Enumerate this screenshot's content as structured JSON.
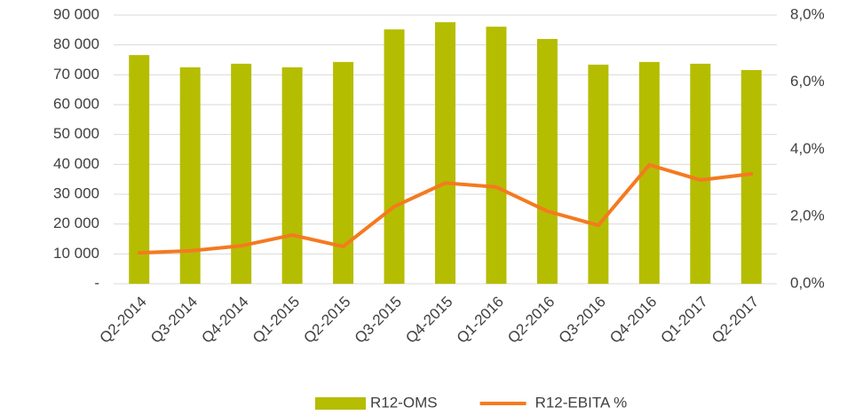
{
  "chart_data": {
    "type": "bar_line",
    "categories": [
      "Q2-2014",
      "Q3-2014",
      "Q4-2014",
      "Q1-2015",
      "Q2-2015",
      "Q3-2015",
      "Q4-2015",
      "Q1-2016",
      "Q2-2016",
      "Q3-2016",
      "Q4-2016",
      "Q1-2017",
      "Q2-2017"
    ],
    "series": [
      {
        "name": "R12-OMS",
        "type": "bar",
        "color": "#b5bd00",
        "values": [
          76600,
          72500,
          73700,
          72500,
          74300,
          85200,
          87600,
          86100,
          82000,
          73400,
          74300,
          73700,
          71600
        ]
      },
      {
        "name": "R12-EBITA %",
        "type": "line",
        "axis": "y2",
        "color": "#f47a20",
        "values": [
          0.92,
          0.98,
          1.13,
          1.45,
          1.11,
          2.3,
          3.0,
          2.88,
          2.16,
          1.74,
          3.54,
          3.09,
          3.27
        ]
      }
    ],
    "ylim": [
      0,
      90000
    ],
    "yticks": [
      {
        "value": 0,
        "label": "-"
      },
      {
        "value": 10000,
        "label": "10 000"
      },
      {
        "value": 20000,
        "label": "20 000"
      },
      {
        "value": 30000,
        "label": "30 000"
      },
      {
        "value": 40000,
        "label": "40 000"
      },
      {
        "value": 50000,
        "label": "50 000"
      },
      {
        "value": 60000,
        "label": "60 000"
      },
      {
        "value": 70000,
        "label": "70 000"
      },
      {
        "value": 80000,
        "label": "80 000"
      },
      {
        "value": 90000,
        "label": "90 000"
      }
    ],
    "y2lim": [
      0,
      8
    ],
    "y2ticks": [
      {
        "value": 0,
        "label": "0,0%"
      },
      {
        "value": 2,
        "label": "2,0%"
      },
      {
        "value": 4,
        "label": "4,0%"
      },
      {
        "value": 6,
        "label": "6,0%"
      },
      {
        "value": 8,
        "label": "8,0%"
      }
    ],
    "grid": true,
    "legend": "bottom"
  }
}
